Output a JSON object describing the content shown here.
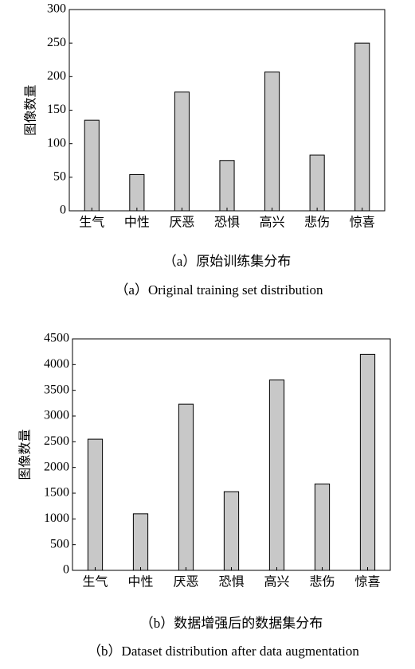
{
  "chart_data": [
    {
      "type": "bar",
      "ylabel": "图像数量",
      "categories": [
        "生气",
        "中性",
        "厌恶",
        "恐惧",
        "高兴",
        "悲伤",
        "惊喜"
      ],
      "values": [
        135,
        54,
        177,
        75,
        207,
        83,
        250
      ],
      "color": "#c8c8c8",
      "ylim": [
        0,
        300
      ],
      "yticks": [
        0,
        50,
        100,
        150,
        200,
        250,
        300
      ],
      "caption": "（a）原始训练集分布",
      "caption_en": "（a）Original training set distribution"
    },
    {
      "type": "bar",
      "ylabel": "图像数量",
      "categories": [
        "生气",
        "中性",
        "厌恶",
        "恐惧",
        "高兴",
        "悲伤",
        "惊喜"
      ],
      "values": [
        2550,
        1100,
        3230,
        1530,
        3700,
        1680,
        4200
      ],
      "color": "#c8c8c8",
      "ylim": [
        0,
        4500
      ],
      "yticks": [
        0,
        500,
        1000,
        1500,
        2000,
        2500,
        3000,
        3500,
        4000,
        4500
      ],
      "caption": "（b）数据增强后的数据集分布",
      "caption_en": "（b）Dataset distribution after data augmentation"
    }
  ]
}
